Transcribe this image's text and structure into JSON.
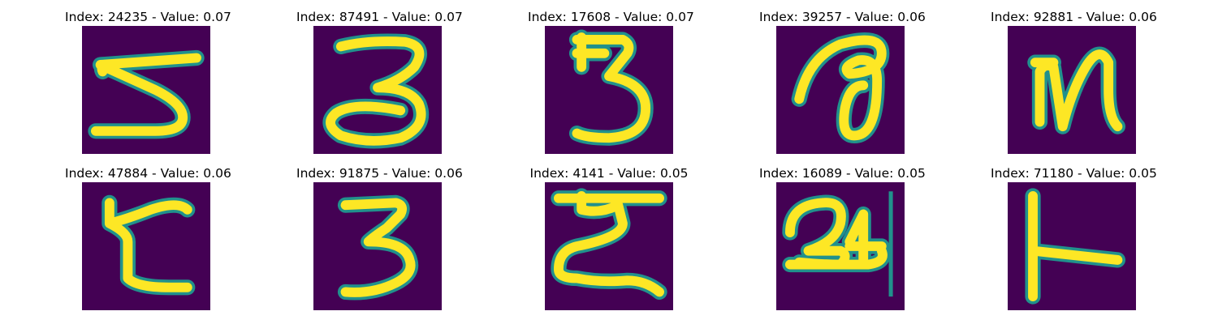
{
  "colors": {
    "background": "#440154",
    "mid": "#21918c",
    "stroke": "#fde725",
    "edge": "#5ec962"
  },
  "panels": [
    {
      "title": "Index: 24235 - Value: 0.07",
      "glyph": "5"
    },
    {
      "title": "Index: 87491 - Value: 0.07",
      "glyph": "3"
    },
    {
      "title": "Index: 17608 - Value: 0.07",
      "glyph": "3"
    },
    {
      "title": "Index: 39257 - Value: 0.06",
      "glyph": "a"
    },
    {
      "title": "Index: 92881 - Value: 0.06",
      "glyph": "n"
    },
    {
      "title": "Index: 47884 - Value: 0.06",
      "glyph": "c"
    },
    {
      "title": "Index: 91875 - Value: 0.06",
      "glyph": "3"
    },
    {
      "title": "Index: 4141 - Value: 0.05",
      "glyph": "z"
    },
    {
      "title": "Index: 16089 - Value: 0.05",
      "glyph": "2"
    },
    {
      "title": "Index: 71180 - Value: 0.05",
      "glyph": "t"
    }
  ]
}
